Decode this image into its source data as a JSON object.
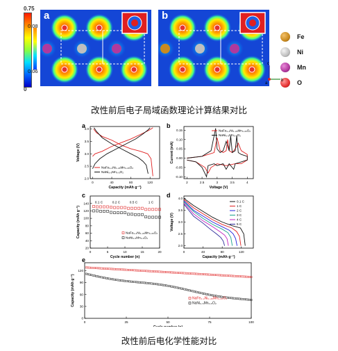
{
  "top_figure": {
    "panels": [
      "a",
      "b"
    ],
    "colorbar": {
      "max": "0.75",
      "zero": "0",
      "inset_max": "0.08",
      "inset_min": "0.06"
    },
    "legend": [
      {
        "label": "Fe",
        "color": "#c98a1f"
      },
      {
        "label": "Ni",
        "color": "#bfbfbf"
      },
      {
        "label": "Mn",
        "color": "#b0399e"
      },
      {
        "label": "O",
        "color": "#e53030"
      }
    ],
    "axes": {
      "c": "c",
      "a": "a",
      "b": "b"
    }
  },
  "caption_top": "改性前后电子局域函数理论计算结果对比",
  "caption_bottom": "改性前后电化学性能对比",
  "series_names": {
    "doped": "NaFe₀.₂Ni₀.₄₅Mn₀.₃₅O₂",
    "pristine": "NaNi₀.₅Mn₀.₅O₂"
  },
  "colors": {
    "doped": "#e02020",
    "pristine": "#111111"
  },
  "chart_data": [
    {
      "id": "a",
      "type": "line",
      "xlabel": "Capacity (mAh g⁻¹)",
      "ylabel": "Voltage (V)",
      "xlim": [
        -5,
        140
      ],
      "ylim": [
        2.0,
        4.1
      ],
      "xticks": [
        0,
        40,
        80,
        120
      ],
      "yticks": [
        2.0,
        2.5,
        3.0,
        3.5,
        4.0
      ],
      "series": [
        {
          "name": "NaFe₀.₂Ni₀.₄₅Mn₀.₃₅O₂",
          "color": "#e02020",
          "x": [
            0,
            5,
            20,
            40,
            60,
            80,
            100,
            115,
            122,
            126
          ],
          "y": [
            2.9,
            3.0,
            3.1,
            3.3,
            3.45,
            3.6,
            3.78,
            3.92,
            4.0,
            4.05
          ]
        },
        {
          "name": "NaFe₀.₂Ni₀.₄₅Mn₀.₃₅O₂",
          "color": "#e02020",
          "x": [
            2,
            8,
            20,
            40,
            60,
            80,
            100,
            115,
            122,
            126
          ],
          "y": [
            4.0,
            3.85,
            3.7,
            3.55,
            3.35,
            3.2,
            3.1,
            3.0,
            2.8,
            2.1
          ]
        },
        {
          "name": "NaNi₀.₅Mn₀.₅O₂",
          "color": "#111111",
          "x": [
            0,
            5,
            15,
            30,
            50,
            70,
            90,
            105,
            115,
            120
          ],
          "y": [
            2.4,
            2.6,
            2.8,
            3.0,
            3.2,
            3.4,
            3.6,
            3.8,
            3.95,
            4.05
          ]
        },
        {
          "name": "NaNi₀.₅Mn₀.₅O₂",
          "color": "#111111",
          "x": [
            3,
            8,
            20,
            40,
            60,
            80,
            95,
            105,
            112,
            116
          ],
          "y": [
            4.05,
            3.9,
            3.65,
            3.4,
            3.2,
            3.0,
            2.85,
            2.7,
            2.55,
            2.2
          ]
        }
      ]
    },
    {
      "id": "b",
      "type": "line",
      "xlabel": "Voltage (V)",
      "ylabel": "Current (mA)",
      "xlim": [
        1.9,
        4.2
      ],
      "ylim": [
        -0.11,
        0.17
      ],
      "xticks": [
        2.0,
        2.5,
        3.0,
        3.5,
        4.0
      ],
      "yticks": [
        -0.1,
        -0.05,
        0.0,
        0.05,
        0.1,
        0.15
      ],
      "series": [
        {
          "name": "NaFe₀.₂Ni₀.₄₅Mn₀.₃₅O₂",
          "color": "#e02020",
          "x": [
            2.0,
            2.5,
            2.9,
            3.0,
            3.1,
            3.2,
            3.3,
            3.35,
            3.4,
            3.5,
            3.6,
            3.7,
            3.8,
            4.0,
            4.0,
            3.8,
            3.6,
            3.3,
            3.0,
            2.8,
            2.7,
            2.6,
            2.3,
            2.0
          ],
          "y": [
            0.0,
            0.01,
            0.03,
            0.11,
            0.04,
            0.03,
            0.04,
            0.1,
            0.04,
            0.03,
            0.05,
            0.08,
            0.04,
            0.02,
            -0.01,
            -0.03,
            -0.03,
            -0.04,
            -0.03,
            -0.05,
            -0.08,
            -0.05,
            -0.02,
            -0.01
          ]
        },
        {
          "name": "NaNi₀.₅Mn₀.₅O₂",
          "color": "#111111",
          "x": [
            2.0,
            2.5,
            2.8,
            2.95,
            3.0,
            3.1,
            3.2,
            3.3,
            3.4,
            3.45,
            3.5,
            3.6,
            3.65,
            3.7,
            3.8,
            4.0,
            4.0,
            3.8,
            3.6,
            3.55,
            3.4,
            3.3,
            3.2,
            3.0,
            2.9,
            2.7,
            2.65,
            2.5,
            2.3,
            2.0
          ],
          "y": [
            0.0,
            0.01,
            0.04,
            0.16,
            0.05,
            0.03,
            0.04,
            0.09,
            0.04,
            0.12,
            0.03,
            0.04,
            0.12,
            0.03,
            0.02,
            0.01,
            -0.01,
            -0.02,
            -0.03,
            -0.06,
            -0.03,
            -0.06,
            -0.03,
            -0.04,
            -0.03,
            -0.04,
            -0.1,
            -0.05,
            -0.02,
            -0.01
          ]
        }
      ]
    },
    {
      "id": "c",
      "type": "scatter",
      "xlabel": "Cycle number (n)",
      "ylabel": "Capacity (mAh g⁻¹)",
      "xlim": [
        0,
        20
      ],
      "ylim": [
        20,
        160
      ],
      "xticks": [
        0,
        5,
        10,
        15,
        20
      ],
      "yticks": [
        20,
        40,
        60,
        80,
        100,
        120,
        140
      ],
      "annotations": [
        "0.1 C",
        "0.2 C",
        "0.5 C",
        "1 C"
      ],
      "series": [
        {
          "name": "NaFe₀.₂Ni₀.₄₅Mn₀.₃₅O₂",
          "color": "#e02020",
          "x": [
            1,
            2,
            3,
            4,
            5,
            6,
            7,
            8,
            9,
            10,
            11,
            12,
            13,
            14,
            15,
            16,
            17,
            18,
            19,
            20
          ],
          "y": [
            132,
            131,
            131,
            131,
            131,
            130,
            129,
            129,
            129,
            129,
            127,
            127,
            127,
            127,
            127,
            124,
            124,
            124,
            124,
            124
          ]
        },
        {
          "name": "NaNi₀.₅Mn₀.₅O₂",
          "color": "#111111",
          "x": [
            1,
            2,
            3,
            4,
            5,
            6,
            7,
            8,
            9,
            10,
            11,
            12,
            13,
            14,
            15,
            16,
            17,
            18,
            19,
            20
          ],
          "y": [
            120,
            120,
            119,
            119,
            119,
            116,
            115,
            115,
            115,
            115,
            111,
            111,
            110,
            110,
            110,
            104,
            103,
            103,
            103,
            103
          ]
        }
      ]
    },
    {
      "id": "d",
      "type": "line",
      "xlabel": "Capacity (mAh g⁻¹)",
      "ylabel": "Voltage (V)",
      "xlim": [
        0,
        145
      ],
      "ylim": [
        1.9,
        4.1
      ],
      "xticks": [
        0,
        40,
        80,
        120
      ],
      "yticks": [
        2.0,
        2.5,
        3.0,
        3.5,
        4.0
      ],
      "series": [
        {
          "name": "0.1 C",
          "color": "#111111",
          "x": [
            0,
            20,
            40,
            60,
            80,
            100,
            118,
            125,
            128
          ],
          "y": [
            4.0,
            3.7,
            3.45,
            3.2,
            3.0,
            2.85,
            2.75,
            2.5,
            2.0
          ]
        },
        {
          "name": "1 C",
          "color": "#e02020",
          "x": [
            0,
            20,
            40,
            60,
            80,
            100,
            110,
            116,
            119
          ],
          "y": [
            3.95,
            3.6,
            3.35,
            3.1,
            2.9,
            2.75,
            2.6,
            2.4,
            2.0
          ]
        },
        {
          "name": "2 C",
          "color": "#2222dd",
          "x": [
            0,
            20,
            40,
            60,
            80,
            95,
            103,
            108,
            111
          ],
          "y": [
            3.9,
            3.5,
            3.25,
            3.0,
            2.8,
            2.65,
            2.5,
            2.3,
            2.0
          ]
        },
        {
          "name": "3 C",
          "color": "#18a08c",
          "x": [
            0,
            20,
            40,
            60,
            80,
            92,
            98,
            101
          ],
          "y": [
            3.85,
            3.45,
            3.15,
            2.9,
            2.7,
            2.55,
            2.35,
            2.0
          ]
        },
        {
          "name": "4 C",
          "color": "#c020c0",
          "x": [
            0,
            20,
            40,
            60,
            75,
            85,
            90,
            93
          ],
          "y": [
            3.8,
            3.35,
            3.05,
            2.8,
            2.6,
            2.45,
            2.3,
            2.0
          ]
        },
        {
          "name": "5 C",
          "color": "#2a2a9a",
          "x": [
            0,
            20,
            40,
            55,
            68,
            77,
            82,
            85
          ],
          "y": [
            3.75,
            3.25,
            2.95,
            2.7,
            2.5,
            2.35,
            2.2,
            2.0
          ]
        }
      ]
    },
    {
      "id": "e",
      "type": "scatter",
      "xlabel": "Cycle number (n)",
      "ylabel": "Capacity (mAh g⁻¹)",
      "xlim": [
        0,
        100
      ],
      "ylim": [
        0,
        140
      ],
      "xticks": [
        0,
        25,
        50,
        75,
        100
      ],
      "yticks": [
        0,
        30,
        60,
        90,
        120
      ],
      "series": [
        {
          "name": "NaFe₀.₂Ni₀.₄₅Mn₀.₃₅O₂",
          "color": "#e02020",
          "start": 128,
          "end": 104,
          "n": 100
        },
        {
          "name": "NaNi₀.₅Mn₀.₅O₂",
          "color": "#111111",
          "start": 112,
          "end": 45,
          "n": 100
        }
      ]
    }
  ]
}
